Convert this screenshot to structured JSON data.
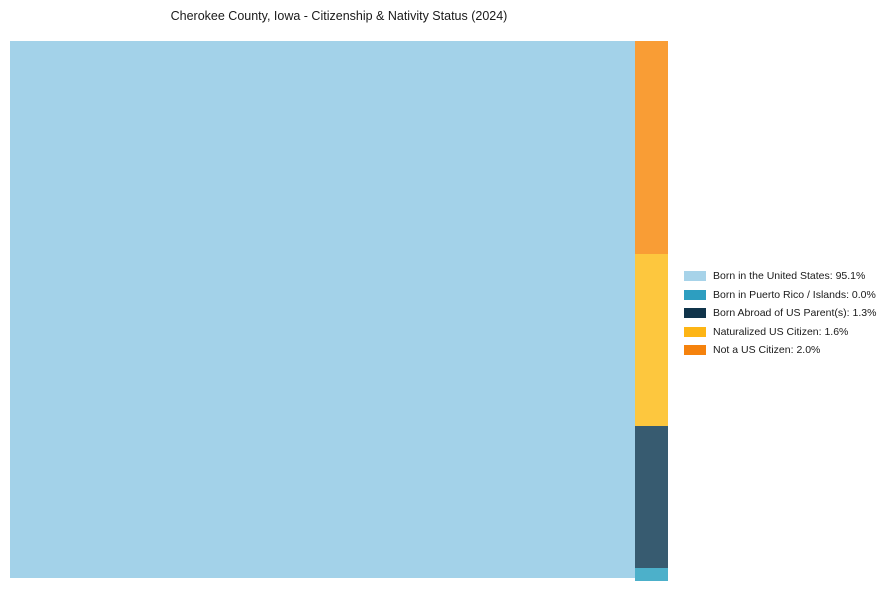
{
  "title": "Cherokee County, Iowa - Citizenship & Nativity Status (2024)",
  "chart_data": {
    "type": "treemap",
    "title": "Cherokee County, Iowa - Citizenship & Nativity Status (2024)",
    "categories": [
      "Born in the United States",
      "Born in Puerto Rico / Islands",
      "Born Abroad of US Parent(s)",
      "Naturalized US Citizen",
      "Not a US Citizen"
    ],
    "values": [
      95.1,
      0.0,
      1.3,
      1.6,
      2.0
    ],
    "unit": "%",
    "legend_position": "right",
    "layout": "large left block with narrow right column stacked top-to-bottom: Not a US Citizen, Naturalized US Citizen, Born Abroad of US Parent(s), Born in Puerto Rico / Islands"
  },
  "treemap": {
    "segments": [
      {
        "name": "born-in-us",
        "label": "Born in the United States",
        "value_pct": 95.1,
        "color": "#a3d2e9"
      },
      {
        "name": "not-citizen",
        "label": "Not a US Citizen",
        "value_pct": 2.0,
        "color": "#f99d35"
      },
      {
        "name": "naturalized",
        "label": "Naturalized US Citizen",
        "value_pct": 1.6,
        "color": "#fdc73e"
      },
      {
        "name": "born-abroad",
        "label": "Born Abroad of US Parent(s)",
        "value_pct": 1.3,
        "color": "#375b70"
      },
      {
        "name": "puerto-rico",
        "label": "Born in Puerto Rico / Islands",
        "value_pct": 0.0,
        "color": "#4cb0ca"
      }
    ]
  },
  "legend": {
    "items": [
      {
        "label": "Born in the United States: 95.1%",
        "swatch": "#a7d3e9"
      },
      {
        "label": "Born in Puerto Rico / Islands: 0.0%",
        "swatch": "#2d9ec0"
      },
      {
        "label": "Born Abroad of US Parent(s): 1.3%",
        "swatch": "#10344a"
      },
      {
        "label": "Naturalized US Citizen: 1.6%",
        "swatch": "#fdb515"
      },
      {
        "label": "Not a US Citizen: 2.0%",
        "swatch": "#f5820d"
      }
    ]
  }
}
